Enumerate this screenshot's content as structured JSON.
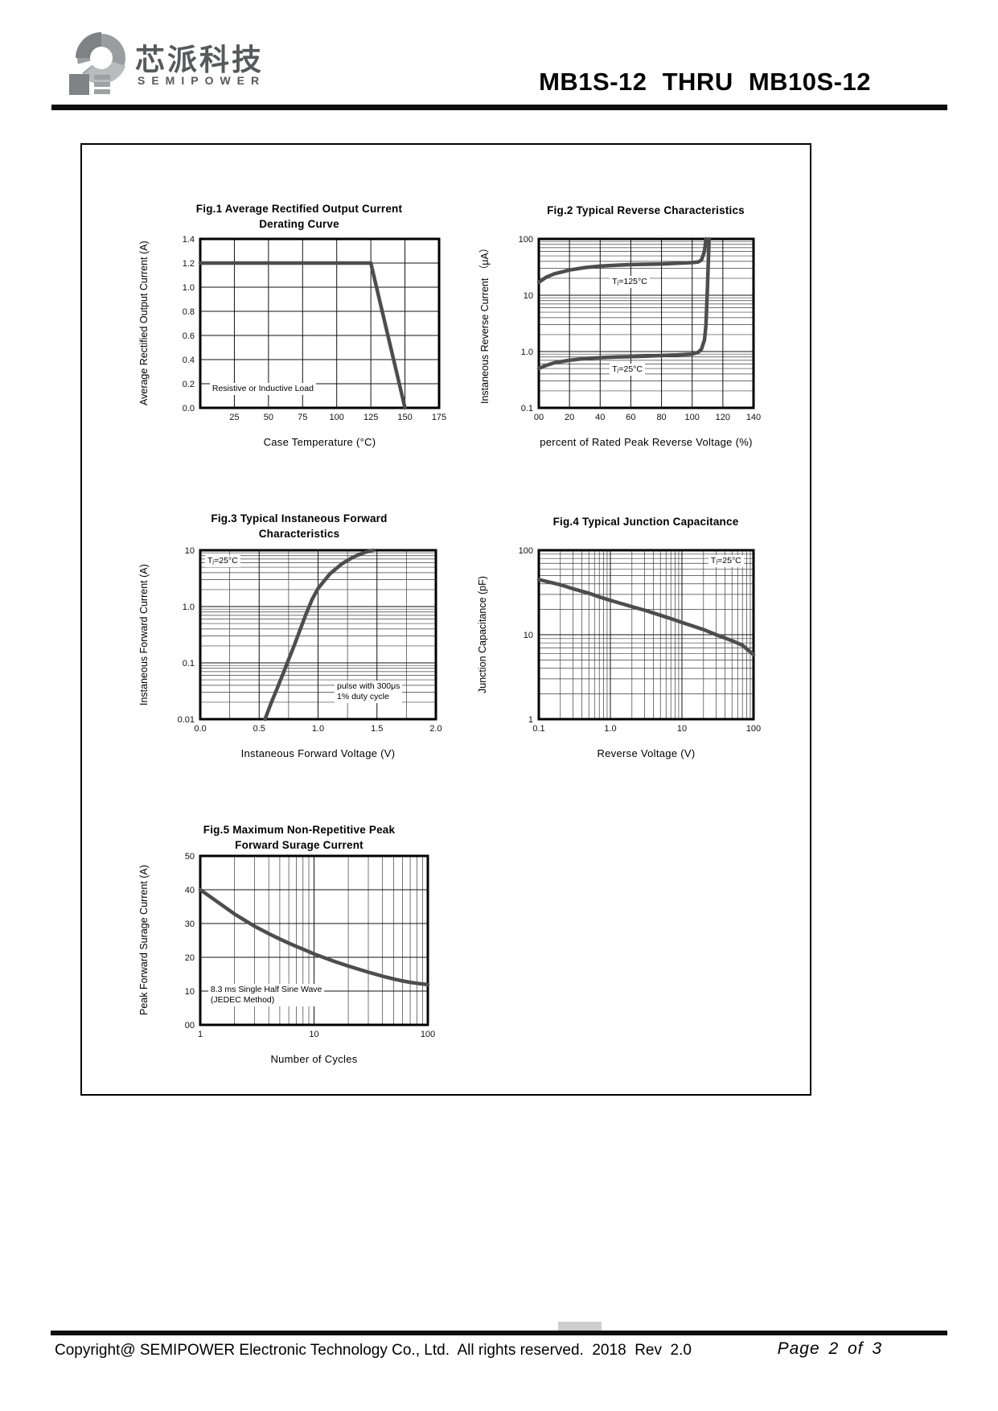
{
  "header": {
    "logo": {
      "brand_cn": "芯派科技",
      "brand_en": "SEMIPOWER"
    },
    "doc_title": "MB1S-12 THRU MB10S-12"
  },
  "chart_data": [
    {
      "type": "line",
      "title_lines": [
        "Fig.1 Average Rectified Output Current",
        "Derating Curve"
      ],
      "xlabel": "Case Temperature (°C)",
      "ylabel": "Average Rectified Output Current (A)",
      "x": {
        "scale": "linear",
        "min": 0,
        "max": 175,
        "ticks": [
          25,
          50,
          75,
          100,
          125,
          150,
          175
        ],
        "tick_labels": [
          "25",
          "50",
          "75",
          "100",
          "125",
          "150",
          "175"
        ]
      },
      "y": {
        "scale": "linear",
        "min": 0,
        "max": 1.4,
        "ticks": [
          0,
          0.2,
          0.4,
          0.6,
          0.8,
          1,
          1.2,
          1.4
        ],
        "tick_labels": [
          "0.0",
          "0.2",
          "0.4",
          "0.6",
          "0.8",
          "1.0",
          "1.2",
          "1.4"
        ]
      },
      "series": [
        {
          "name": "derating",
          "points": [
            [
              0,
              1.2
            ],
            [
              125,
              1.2
            ],
            [
              150,
              0
            ]
          ]
        }
      ],
      "annotations": [
        {
          "lines": [
            "Resistive or Inductive Load"
          ],
          "fx": 0.04,
          "fy": 0.85
        }
      ]
    },
    {
      "type": "line",
      "title_lines": [
        "Fig.2 Typical Reverse Characteristics"
      ],
      "xlabel": "percent of Rated Peak Reverse Voltage (%)",
      "ylabel": "Instaneous Reverse Current （μA）",
      "x": {
        "scale": "linear",
        "min": 0,
        "max": 140,
        "ticks": [
          0,
          20,
          40,
          60,
          80,
          100,
          120,
          140
        ],
        "tick_labels": [
          "00",
          "20",
          "40",
          "60",
          "80",
          "100",
          "120",
          "140"
        ]
      },
      "y": {
        "scale": "log",
        "min": 0.1,
        "max": 100,
        "ticks": [
          0.1,
          1,
          10,
          100
        ],
        "tick_labels": [
          "0.1",
          "1.0",
          "10",
          "100"
        ]
      },
      "series": [
        {
          "name": "Tj=125°C",
          "points": [
            [
              0,
              17
            ],
            [
              5,
              21
            ],
            [
              10,
              24
            ],
            [
              20,
              28
            ],
            [
              30,
              31
            ],
            [
              40,
              33
            ],
            [
              50,
              34
            ],
            [
              60,
              35
            ],
            [
              70,
              35.5
            ],
            [
              80,
              36
            ],
            [
              90,
              37
            ],
            [
              100,
              38
            ],
            [
              104,
              39
            ],
            [
              106,
              42
            ],
            [
              108,
              60
            ],
            [
              109,
              100
            ]
          ]
        },
        {
          "name": "Tj=25°C",
          "points": [
            [
              0,
              0.5
            ],
            [
              5,
              0.57
            ],
            [
              10,
              0.63
            ],
            [
              20,
              0.7
            ],
            [
              30,
              0.75
            ],
            [
              40,
              0.78
            ],
            [
              50,
              0.8
            ],
            [
              60,
              0.81
            ],
            [
              70,
              0.83
            ],
            [
              80,
              0.85
            ],
            [
              90,
              0.87
            ],
            [
              100,
              0.9
            ],
            [
              104,
              0.97
            ],
            [
              106,
              1.1
            ],
            [
              108,
              1.6
            ],
            [
              109,
              3
            ],
            [
              110,
              15
            ],
            [
              111,
              100
            ]
          ]
        }
      ],
      "annotations": [
        {
          "lines": [
            "Tⱼ=125°C"
          ],
          "fx": 0.33,
          "fy": 0.22
        },
        {
          "lines": [
            "Tⱼ=25°C"
          ],
          "fx": 0.33,
          "fy": 0.74
        }
      ]
    },
    {
      "type": "line",
      "title_lines": [
        "Fig.3 Typical Instaneous Forward",
        "Characteristics"
      ],
      "xlabel": "Instaneous Forward Voltage (V)",
      "ylabel": "Instaneous Forward Current (A)",
      "x": {
        "scale": "linear",
        "min": 0,
        "max": 2,
        "minor_step": 0.25,
        "ticks": [
          0,
          0.5,
          1,
          1.5,
          2
        ],
        "tick_labels": [
          "0.0",
          "0.5",
          "1.0",
          "1.5",
          "2.0"
        ]
      },
      "y": {
        "scale": "log",
        "min": 0.01,
        "max": 10,
        "ticks": [
          0.01,
          0.1,
          1,
          10
        ],
        "tick_labels": [
          "0.01",
          "0.1",
          "1.0",
          "10"
        ]
      },
      "series": [
        {
          "name": "Tj=25°C",
          "points": [
            [
              0.55,
              0.01
            ],
            [
              0.6,
              0.019
            ],
            [
              0.65,
              0.034
            ],
            [
              0.7,
              0.062
            ],
            [
              0.75,
              0.115
            ],
            [
              0.8,
              0.21
            ],
            [
              0.85,
              0.4
            ],
            [
              0.9,
              0.75
            ],
            [
              0.95,
              1.35
            ],
            [
              1,
              2.1
            ],
            [
              1.1,
              3.8
            ],
            [
              1.2,
              5.7
            ],
            [
              1.3,
              7.6
            ],
            [
              1.4,
              9.2
            ],
            [
              1.47,
              10
            ]
          ]
        }
      ],
      "annotations": [
        {
          "lines": [
            "Tⱼ=25°C"
          ],
          "fx": 0.02,
          "fy": 0.03
        },
        {
          "lines": [
            "pulse with 300μs",
            "1% duty cycle"
          ],
          "fx": 0.57,
          "fy": 0.77
        }
      ]
    },
    {
      "type": "line",
      "title_lines": [
        "Fig.4 Typical Junction Capacitance"
      ],
      "xlabel": "Reverse  Voltage (V)",
      "ylabel": "Junction Capacitance (pF)",
      "x": {
        "scale": "log",
        "min": 0.1,
        "max": 100,
        "ticks": [
          0.1,
          1,
          10,
          100
        ],
        "tick_labels": [
          "0.1",
          "1.0",
          "10",
          "100"
        ]
      },
      "y": {
        "scale": "log",
        "min": 1,
        "max": 100,
        "ticks": [
          1,
          10,
          100
        ],
        "tick_labels": [
          "1",
          "10",
          "100"
        ]
      },
      "series": [
        {
          "name": "Tj=25°C",
          "points": [
            [
              0.1,
              45
            ],
            [
              0.2,
              39
            ],
            [
              0.3,
              35
            ],
            [
              0.5,
              31
            ],
            [
              0.7,
              28
            ],
            [
              1,
              25.5
            ],
            [
              2,
              21.5
            ],
            [
              3,
              19.5
            ],
            [
              5,
              17
            ],
            [
              7,
              15.5
            ],
            [
              10,
              14
            ],
            [
              20,
              11.5
            ],
            [
              30,
              10
            ],
            [
              50,
              8.5
            ],
            [
              70,
              7.5
            ],
            [
              100,
              5.8
            ]
          ]
        }
      ],
      "annotations": [
        {
          "lines": [
            "Tⱼ=25°C"
          ],
          "fx": 0.79,
          "fy": 0.03
        }
      ]
    },
    {
      "type": "line",
      "title_lines": [
        "Fig.5 Maximum Non-Repetitive Peak",
        "Forward Surage Current"
      ],
      "xlabel": "Number of Cycles",
      "ylabel": "Peak Forward Surage Current (A)",
      "x": {
        "scale": "log",
        "min": 1,
        "max": 100,
        "ticks": [
          1,
          10,
          100
        ],
        "tick_labels": [
          "1",
          "10",
          "100"
        ]
      },
      "y": {
        "scale": "linear",
        "min": 0,
        "max": 50,
        "ticks": [
          0,
          10,
          20,
          30,
          40,
          50
        ],
        "tick_labels": [
          "00",
          "10",
          "20",
          "30",
          "40",
          "50"
        ]
      },
      "series": [
        {
          "name": "surge",
          "points": [
            [
              1,
              40
            ],
            [
              1.5,
              35.8
            ],
            [
              2,
              32.8
            ],
            [
              3,
              29.2
            ],
            [
              4,
              27
            ],
            [
              5,
              25.4
            ],
            [
              6,
              24.2
            ],
            [
              7,
              23.2
            ],
            [
              8,
              22.4
            ],
            [
              10,
              21
            ],
            [
              15,
              18.8
            ],
            [
              20,
              17.4
            ],
            [
              30,
              15.6
            ],
            [
              40,
              14.4
            ],
            [
              50,
              13.6
            ],
            [
              60,
              13
            ],
            [
              70,
              12.6
            ],
            [
              80,
              12.3
            ],
            [
              100,
              11.9
            ]
          ]
        }
      ],
      "annotations": [
        {
          "lines": [
            "8.3 ms Single Half Sine Wave",
            "(JEDEC Method)"
          ],
          "fx": 0.035,
          "fy": 0.755
        }
      ]
    }
  ],
  "footer": {
    "copyright": "Copyright@ SEMIPOWER Electronic Technology Co., Ltd.  All rights reserved.  2018  Rev  2.0",
    "page": "Page 2 of 3"
  }
}
